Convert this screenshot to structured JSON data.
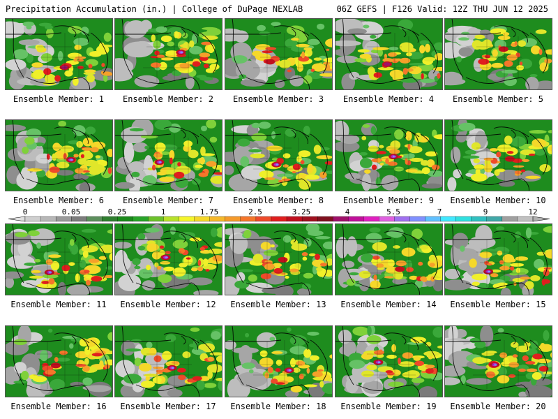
{
  "header": {
    "title": "Precipitation Accumulation (in.) | College of DuPage NEXLAB",
    "run_info": "06Z GEFS | F126 Valid: 12Z THU JUN 12 2025"
  },
  "members": [
    {
      "label": "Ensemble Member: 1",
      "max_level": "3.25"
    },
    {
      "label": "Ensemble Member: 2",
      "max_level": "4"
    },
    {
      "label": "Ensemble Member: 3",
      "max_level": "2.5"
    },
    {
      "label": "Ensemble Member: 4",
      "max_level": "3.25"
    },
    {
      "label": "Ensemble Member: 5",
      "max_level": "2.5"
    },
    {
      "label": "Ensemble Member: 6",
      "max_level": "4"
    },
    {
      "label": "Ensemble Member: 7",
      "max_level": "4"
    },
    {
      "label": "Ensemble Member: 8",
      "max_level": "4"
    },
    {
      "label": "Ensemble Member: 9",
      "max_level": "4"
    },
    {
      "label": "Ensemble Member: 10",
      "max_level": "2.5"
    },
    {
      "label": "Ensemble Member: 11",
      "max_level": "4"
    },
    {
      "label": "Ensemble Member: 12",
      "max_level": "4"
    },
    {
      "label": "Ensemble Member: 13",
      "max_level": "2.5"
    },
    {
      "label": "Ensemble Member: 14",
      "max_level": "2.5"
    },
    {
      "label": "Ensemble Member: 15",
      "max_level": "4"
    },
    {
      "label": "Ensemble Member: 16",
      "max_level": "2.5"
    },
    {
      "label": "Ensemble Member: 17",
      "max_level": "4"
    },
    {
      "label": "Ensemble Member: 18",
      "max_level": "4"
    },
    {
      "label": "Ensemble Member: 19",
      "max_level": "4"
    },
    {
      "label": "Ensemble Member: 20",
      "max_level": "4"
    }
  ],
  "colorbar": {
    "tick_labels": [
      "0",
      "0.05",
      "0.25",
      "1",
      "1.75",
      "2.5",
      "3.25",
      "4",
      "5.5",
      "7",
      "9",
      "12"
    ],
    "colors": [
      "#cfcfcf",
      "#b7b7b7",
      "#9a9a9a",
      "#7d7d7d",
      "#5c8f5c",
      "#2f7f2f",
      "#1a8a1a",
      "#28a428",
      "#6cc22a",
      "#b8e22a",
      "#f5f52a",
      "#f5d82a",
      "#f5b82a",
      "#f59a2a",
      "#f5762a",
      "#ee4a2a",
      "#e01e1e",
      "#c00f1e",
      "#a0101e",
      "#80101e",
      "#a0106a",
      "#c0109a",
      "#e020c0",
      "#e060e0",
      "#a070f0",
      "#8090ff",
      "#60c0ff",
      "#40e8ff",
      "#30e0e0",
      "#30c0c0",
      "#40a8a8",
      "#a0a0a0",
      "#c0c0c0"
    ]
  }
}
